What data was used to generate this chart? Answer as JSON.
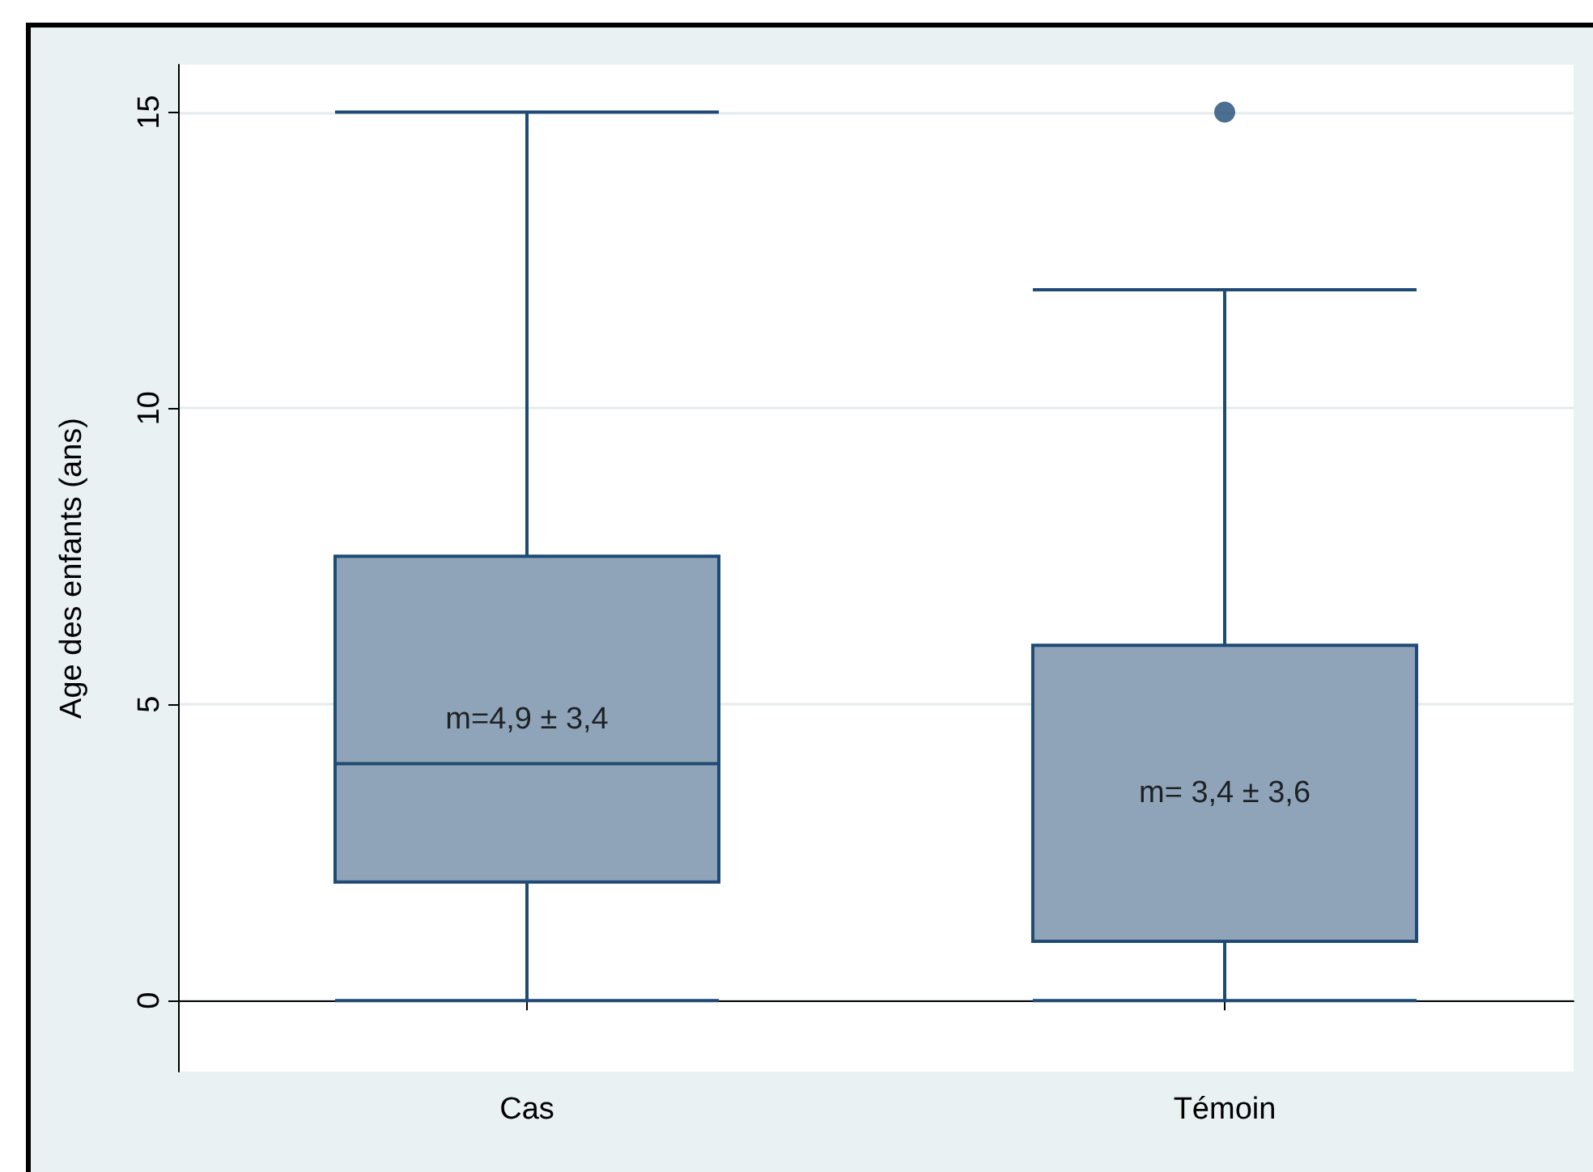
{
  "chart_data": {
    "type": "box",
    "ylabel": "Age des enfants (ans)",
    "categories": [
      "Cas",
      "Témoin"
    ],
    "boxes": [
      {
        "low": 0,
        "q1": 2,
        "median": 4,
        "q3": 7.5,
        "high": 15
      },
      {
        "low": 0,
        "q1": 1,
        "median": 1,
        "q3": 6,
        "high": 12,
        "outliers": [
          15
        ]
      }
    ],
    "color": "#8fa4b8",
    "ylim": [
      -1.2,
      15.8
    ],
    "yticks": [
      0,
      5,
      10,
      15
    ],
    "grid": "y",
    "annotations": [
      "m=4,9 ± 3,4",
      "m= 3,4 ± 3,6"
    ]
  }
}
